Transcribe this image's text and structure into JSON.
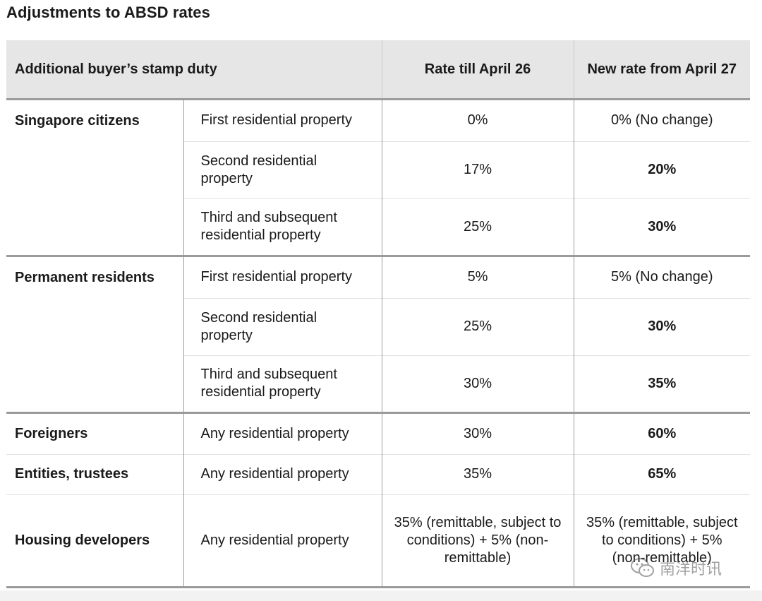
{
  "title": "Adjustments to ABSD rates",
  "header": {
    "col1": "Additional buyer’s stamp duty",
    "col3": "Rate till April 26",
    "col4": "New rate from April 27"
  },
  "groups": [
    {
      "category": "Singapore citizens",
      "rows": [
        {
          "property": "First residential property",
          "old": "0%",
          "new": "0% (No change)"
        },
        {
          "property": "Second residential property",
          "old": "17%",
          "new": "20%"
        },
        {
          "property": "Third and subsequent residential property",
          "old": "25%",
          "new": "30%"
        }
      ]
    },
    {
      "category": "Permanent residents",
      "rows": [
        {
          "property": "First residential property",
          "old": "5%",
          "new": "5% (No change)"
        },
        {
          "property": "Second residential property",
          "old": "25%",
          "new": "30%"
        },
        {
          "property": "Third and subsequent residential property",
          "old": "30%",
          "new": "35%"
        }
      ]
    },
    {
      "category": "Foreigners",
      "rows": [
        {
          "property": "Any residential property",
          "old": "30%",
          "new": "60%"
        }
      ]
    },
    {
      "category": "Entities, trustees",
      "rows": [
        {
          "property": "Any residential property",
          "old": "35%",
          "new": "65%"
        }
      ]
    },
    {
      "category": "Housing developers",
      "rows": [
        {
          "property": "Any residential property",
          "old": "35% (remittable, subject to conditions) + 5% (non-remittable)",
          "new": "35% (remittable, subject to conditions) + 5% (non-remittable)"
        }
      ]
    }
  ],
  "watermark": {
    "text": "南洋时讯",
    "icon": "wechat-icon"
  }
}
